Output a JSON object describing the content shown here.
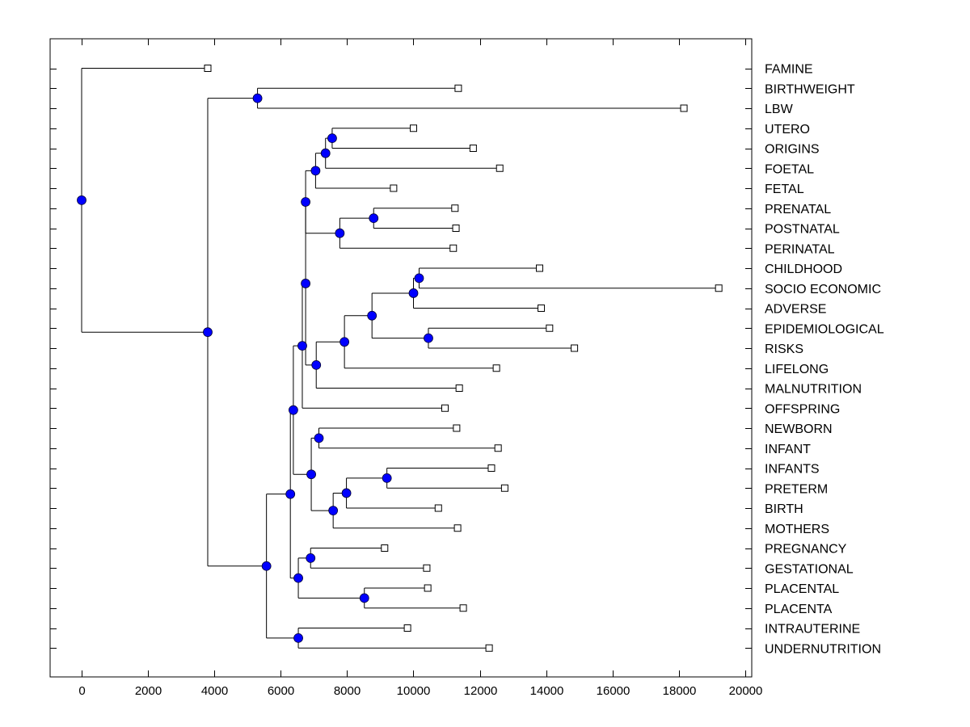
{
  "chart_data": {
    "type": "dendrogram",
    "title": "",
    "xlabel": "",
    "ylabel": "",
    "xlim": [
      -1000,
      20500
    ],
    "x_ticks": [
      0,
      2000,
      4000,
      6000,
      8000,
      10000,
      12000,
      14000,
      16000,
      18000,
      20000
    ],
    "x_tick_labels": [
      "0",
      "2000",
      "4000",
      "6000",
      "8000",
      "10000",
      "12000",
      "14000",
      "16000",
      "18000",
      "20000"
    ],
    "grid": false,
    "node_color": "#0000ff",
    "leaves": [
      {
        "label": "FAMINE",
        "x": 3800
      },
      {
        "label": "BIRTHWEIGHT",
        "x": 11350
      },
      {
        "label": "LBW",
        "x": 18150
      },
      {
        "label": "UTERO",
        "x": 10000
      },
      {
        "label": "ORIGINS",
        "x": 11800
      },
      {
        "label": "FOETAL",
        "x": 12600
      },
      {
        "label": "FETAL",
        "x": 9400
      },
      {
        "label": "PRENATAL",
        "x": 11250
      },
      {
        "label": "POSTNATAL",
        "x": 11280
      },
      {
        "label": "PERINATAL",
        "x": 11200
      },
      {
        "label": "CHILDHOOD",
        "x": 13800
      },
      {
        "label": "SOCIO ECONOMIC",
        "x": 19200
      },
      {
        "label": "ADVERSE",
        "x": 13850
      },
      {
        "label": "EPIDEMIOLOGICAL",
        "x": 14100
      },
      {
        "label": "RISKS",
        "x": 14850
      },
      {
        "label": "LIFELONG",
        "x": 12500
      },
      {
        "label": "MALNUTRITION",
        "x": 11380
      },
      {
        "label": "OFFSPRING",
        "x": 10950
      },
      {
        "label": "NEWBORN",
        "x": 11300
      },
      {
        "label": "INFANT",
        "x": 12550
      },
      {
        "label": "INFANTS",
        "x": 12350
      },
      {
        "label": "PRETERM",
        "x": 12750
      },
      {
        "label": "BIRTH",
        "x": 10750
      },
      {
        "label": "MOTHERS",
        "x": 11330
      },
      {
        "label": "PREGNANCY",
        "x": 9130
      },
      {
        "label": "GESTATIONAL",
        "x": 10400
      },
      {
        "label": "PLACENTAL",
        "x": 10430
      },
      {
        "label": "PLACENTA",
        "x": 11500
      },
      {
        "label": "INTRAUTERINE",
        "x": 9820
      },
      {
        "label": "UNDERNUTRITION",
        "x": 12280
      }
    ],
    "nodes": [
      {
        "id": "n_root",
        "x": 0,
        "children": [
          "L0",
          "n_a"
        ]
      },
      {
        "id": "n_a",
        "x": 3800,
        "children": [
          "n_bw",
          "n_b"
        ]
      },
      {
        "id": "n_bw",
        "x": 5300,
        "children": [
          "L1",
          "L2"
        ]
      },
      {
        "id": "n_b",
        "x": 5570,
        "children": [
          "n_c",
          "n_intra"
        ]
      },
      {
        "id": "n_intra",
        "x": 6530,
        "children": [
          "L28",
          "L29"
        ]
      },
      {
        "id": "n_c",
        "x": 6290,
        "children": [
          "n_d",
          "n_preg"
        ]
      },
      {
        "id": "n_preg",
        "x": 6530,
        "children": [
          "n_pg",
          "n_plac"
        ]
      },
      {
        "id": "n_pg",
        "x": 6900,
        "children": [
          "L24",
          "L25"
        ]
      },
      {
        "id": "n_plac",
        "x": 8520,
        "children": [
          "L26",
          "L27"
        ]
      },
      {
        "id": "n_d",
        "x": 6380,
        "children": [
          "n_e",
          "n_inf"
        ]
      },
      {
        "id": "n_inf",
        "x": 6920,
        "children": [
          "n_nb",
          "n_birth"
        ]
      },
      {
        "id": "n_nb",
        "x": 7150,
        "children": [
          "L18",
          "L19"
        ]
      },
      {
        "id": "n_birth",
        "x": 7580,
        "children": [
          "n_pre",
          "L23"
        ]
      },
      {
        "id": "n_pre",
        "x": 7980,
        "children": [
          "n_ip",
          "L22"
        ]
      },
      {
        "id": "n_ip",
        "x": 9200,
        "children": [
          "L20",
          "L21"
        ]
      },
      {
        "id": "n_e",
        "x": 6650,
        "children": [
          "n_f",
          "L17"
        ]
      },
      {
        "id": "n_f",
        "x": 6750,
        "children": [
          "n_g",
          "n_life"
        ]
      },
      {
        "id": "n_g",
        "x": 6750,
        "children": [
          "n_fo",
          "n_pn"
        ]
      },
      {
        "id": "n_fo",
        "x": 7050,
        "children": [
          "n_or",
          "L6"
        ]
      },
      {
        "id": "n_or",
        "x": 7350,
        "children": [
          "n_ut",
          "L5"
        ]
      },
      {
        "id": "n_ut",
        "x": 7550,
        "children": [
          "L3",
          "L4"
        ]
      },
      {
        "id": "n_pn",
        "x": 7780,
        "children": [
          "n_pp",
          "L9"
        ]
      },
      {
        "id": "n_pp",
        "x": 8800,
        "children": [
          "L7",
          "L8"
        ]
      },
      {
        "id": "n_life",
        "x": 7070,
        "children": [
          "n_epi",
          "L16"
        ]
      },
      {
        "id": "n_epi",
        "x": 7920,
        "children": [
          "n_adv",
          "L15"
        ]
      },
      {
        "id": "n_adv",
        "x": 8750,
        "children": [
          "n_ch",
          "n_er"
        ]
      },
      {
        "id": "n_ch",
        "x": 10000,
        "children": [
          "n_se",
          "L12"
        ]
      },
      {
        "id": "n_se",
        "x": 10170,
        "children": [
          "L10",
          "L11"
        ]
      },
      {
        "id": "n_er",
        "x": 10450,
        "children": [
          "L13",
          "L14"
        ]
      }
    ]
  }
}
